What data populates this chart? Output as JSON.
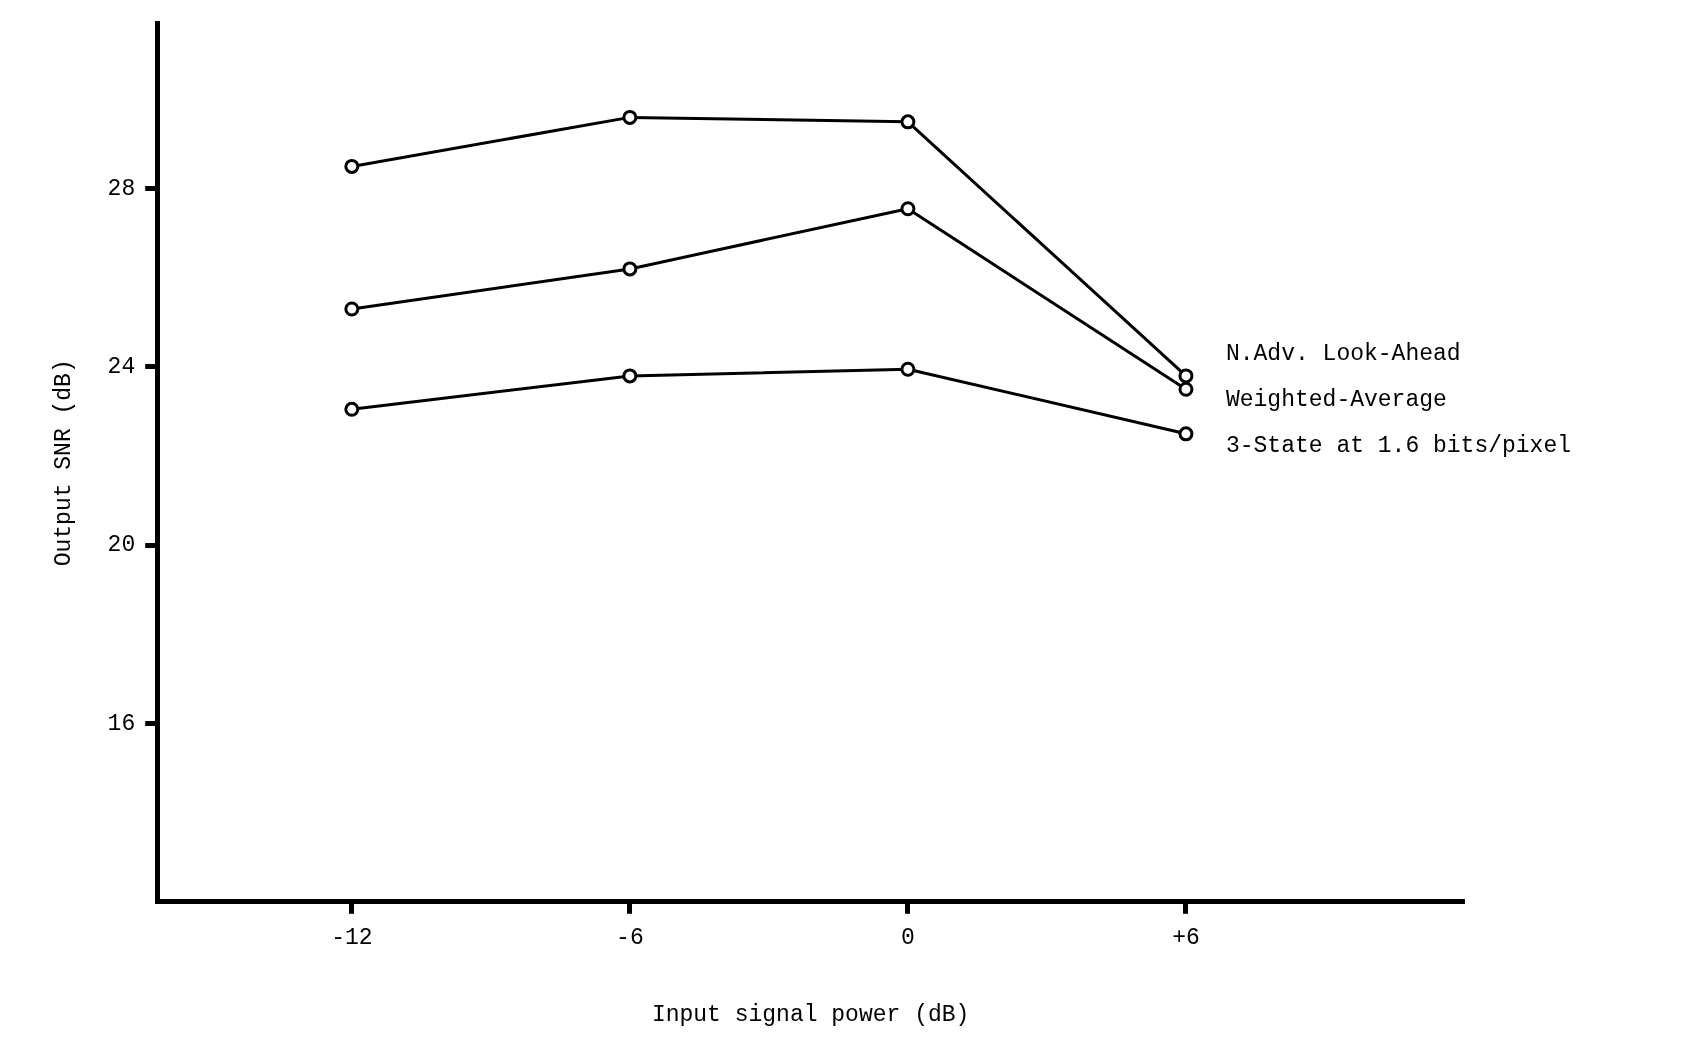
{
  "chart_data": {
    "type": "line",
    "xlabel": "Input signal power (dB)",
    "ylabel": "Output SNR (dB)",
    "x": [
      -12,
      -6,
      0,
      6
    ],
    "series": [
      {
        "name": "N.Adv. Look-Ahead",
        "color": "#000000",
        "values": [
          28.5,
          29.6,
          29.5,
          23.8
        ]
      },
      {
        "name": "Weighted-Average",
        "color": "#000000",
        "values": [
          25.3,
          26.2,
          27.55,
          23.5
        ]
      },
      {
        "name": "3-State at 1.6 bits/pixel",
        "color": "#000000",
        "values": [
          23.05,
          23.8,
          23.95,
          22.5
        ]
      }
    ],
    "xlim": [
      -16.2,
      12
    ],
    "xticks": [
      -12,
      -6,
      0,
      {
        "value": 6,
        "label": "+6"
      }
    ],
    "ylim": [
      12,
      31.7
    ],
    "yticks": [
      16,
      20,
      24,
      28
    ],
    "grid": false,
    "legend": "right",
    "marker": "circle",
    "line_style": "solid"
  }
}
